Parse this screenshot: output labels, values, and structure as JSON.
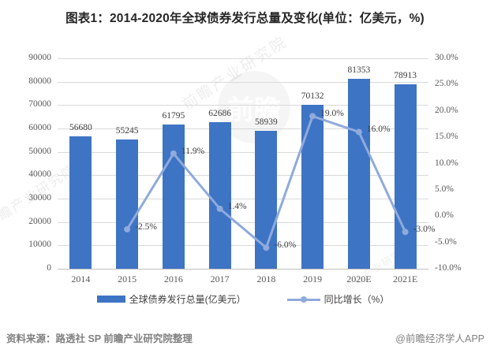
{
  "title": "图表1：2014-2020年全球债券发行总量及变化(单位：亿美元，%)",
  "legend": {
    "bar": "全球债券发行总量(亿美元）",
    "line": "同比增长（%）"
  },
  "footer": {
    "source": "资料来源：路透社 SP 前瞻产业研究院整理",
    "credit": "@前瞻经济学人APP"
  },
  "watermark": {
    "text": "前瞻产业研究院",
    "logo_text": "前瞻"
  },
  "colors": {
    "bar": "#3e74c4",
    "line": "#8faadc",
    "gridline": "#d9d9d9",
    "axis_text": "#595959",
    "data_label": "#3d3d3d"
  },
  "chart_data": {
    "type": "bar+line",
    "categories": [
      "2014",
      "2015",
      "2016",
      "2017",
      "2018",
      "2019",
      "2020E",
      "2021E"
    ],
    "series": [
      {
        "name": "全球债券发行总量(亿美元）",
        "type": "bar",
        "axis": "left",
        "values": [
          56680,
          55245,
          61795,
          62686,
          58939,
          70132,
          81353,
          78913
        ]
      },
      {
        "name": "同比增长（%）",
        "type": "line",
        "axis": "right",
        "values": [
          null,
          -2.5,
          11.9,
          1.4,
          -6.0,
          19.0,
          16.0,
          -3.0
        ]
      }
    ],
    "left_axis": {
      "min": 0,
      "max": 90000,
      "step": 10000
    },
    "right_axis": {
      "min": -10,
      "max": 30,
      "step": 5
    },
    "grid": "horizontal",
    "legend_position": "bottom",
    "data_labels": true
  }
}
